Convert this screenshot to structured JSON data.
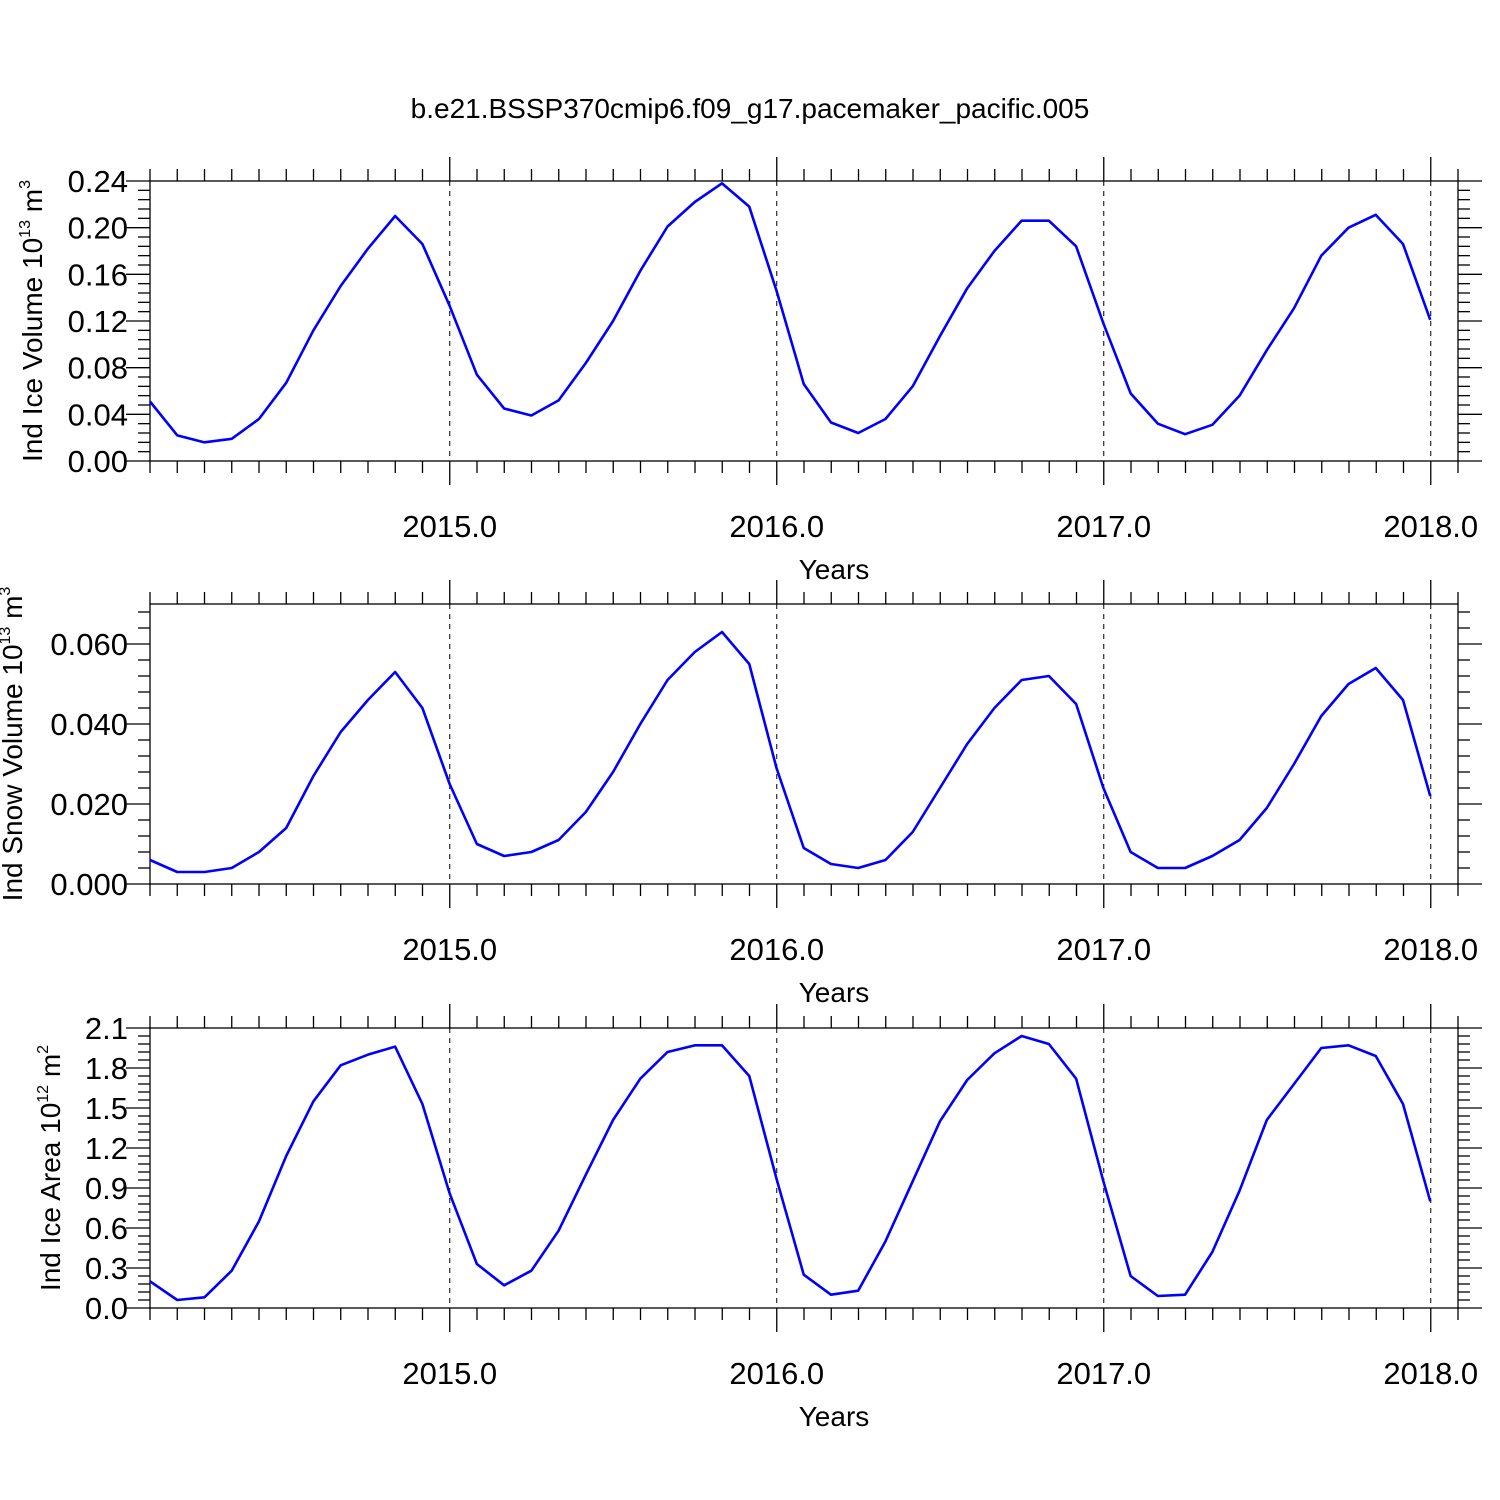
{
  "title": "b.e21.BSSP370cmip6.f09_g17.pacemaker_pacific.005",
  "colors": {
    "series": "#0000ff",
    "axis": "#000000"
  },
  "chart_data": [
    {
      "type": "line",
      "ylabel": {
        "text": "Ind Ice Volume 10",
        "sup": "13",
        "unit": " m",
        "unit_sup": "3"
      },
      "xlabel": "Years",
      "xlim": [
        2014.0833,
        2018.0833
      ],
      "ylim": [
        0,
        0.24
      ],
      "yticks": [
        0,
        0.04,
        0.08,
        0.12,
        0.16,
        0.2,
        0.24
      ],
      "ytick_labels": [
        "0.00",
        "0.04",
        "0.08",
        "0.12",
        "0.16",
        "0.20",
        "0.24"
      ],
      "xticks": [
        2015,
        2016,
        2017,
        2018
      ],
      "xtick_labels": [
        "2015.0",
        "2016.0",
        "2017.0",
        "2018.0"
      ],
      "grid": "dashed vertical at year boundaries",
      "series": [
        {
          "x_start": 2014.0833,
          "x_step": 0.0833,
          "values": [
            0.051,
            0.022,
            0.016,
            0.019,
            0.036,
            0.067,
            0.112,
            0.15,
            0.182,
            0.21,
            0.186,
            0.133,
            0.074,
            0.045,
            0.039,
            0.052,
            0.084,
            0.12,
            0.163,
            0.201,
            0.222,
            0.238,
            0.218,
            0.146,
            0.066,
            0.033,
            0.024,
            0.036,
            0.064,
            0.107,
            0.148,
            0.18,
            0.206,
            0.206,
            0.184,
            0.118,
            0.058,
            0.032,
            0.023,
            0.031,
            0.056,
            0.095,
            0.131,
            0.176,
            0.2,
            0.211,
            0.186,
            0.121
          ]
        }
      ]
    },
    {
      "type": "line",
      "ylabel": {
        "text": "Ind Snow Volume 10",
        "sup": "13",
        "unit": " m",
        "unit_sup": "3"
      },
      "xlabel": "Years",
      "xlim": [
        2014.0833,
        2018.0833
      ],
      "ylim": [
        0,
        0.07
      ],
      "yticks": [
        0,
        0.02,
        0.04,
        0.06
      ],
      "ytick_labels": [
        "0.000",
        "0.020",
        "0.040",
        "0.060"
      ],
      "xticks": [
        2015,
        2016,
        2017,
        2018
      ],
      "xtick_labels": [
        "2015.0",
        "2016.0",
        "2017.0",
        "2018.0"
      ],
      "grid": "dashed vertical at year boundaries",
      "series": [
        {
          "x_start": 2014.0833,
          "x_step": 0.0833,
          "values": [
            0.006,
            0.003,
            0.003,
            0.004,
            0.008,
            0.014,
            0.027,
            0.038,
            0.046,
            0.053,
            0.044,
            0.025,
            0.01,
            0.007,
            0.008,
            0.011,
            0.018,
            0.028,
            0.04,
            0.051,
            0.058,
            0.063,
            0.055,
            0.029,
            0.009,
            0.005,
            0.004,
            0.006,
            0.013,
            0.024,
            0.035,
            0.044,
            0.051,
            0.052,
            0.045,
            0.024,
            0.008,
            0.004,
            0.004,
            0.007,
            0.011,
            0.019,
            0.03,
            0.042,
            0.05,
            0.054,
            0.046,
            0.022
          ]
        }
      ]
    },
    {
      "type": "line",
      "ylabel": {
        "text": "Ind Ice Area 10",
        "sup": "12",
        "unit": " m",
        "unit_sup": "2"
      },
      "xlabel": "Years",
      "xlim": [
        2014.0833,
        2018.0833
      ],
      "ylim": [
        0,
        2.1
      ],
      "yticks": [
        0,
        0.3,
        0.6,
        0.9,
        1.2,
        1.5,
        1.8,
        2.1
      ],
      "ytick_labels": [
        "0.0",
        "0.3",
        "0.6",
        "0.9",
        "1.2",
        "1.5",
        "1.8",
        "2.1"
      ],
      "xticks": [
        2015,
        2016,
        2017,
        2018
      ],
      "xtick_labels": [
        "2015.0",
        "2016.0",
        "2017.0",
        "2018.0"
      ],
      "grid": "dashed vertical at year boundaries",
      "series": [
        {
          "x_start": 2014.0833,
          "x_step": 0.0833,
          "values": [
            0.2,
            0.06,
            0.08,
            0.28,
            0.65,
            1.14,
            1.55,
            1.82,
            1.9,
            1.96,
            1.53,
            0.86,
            0.33,
            0.17,
            0.28,
            0.58,
            1.0,
            1.41,
            1.72,
            1.92,
            1.97,
            1.97,
            1.74,
            0.97,
            0.25,
            0.1,
            0.13,
            0.5,
            0.95,
            1.4,
            1.71,
            1.91,
            2.04,
            1.98,
            1.72,
            0.95,
            0.24,
            0.09,
            0.1,
            0.42,
            0.88,
            1.41,
            1.68,
            1.95,
            1.97,
            1.89,
            1.53,
            0.8
          ]
        }
      ]
    }
  ]
}
